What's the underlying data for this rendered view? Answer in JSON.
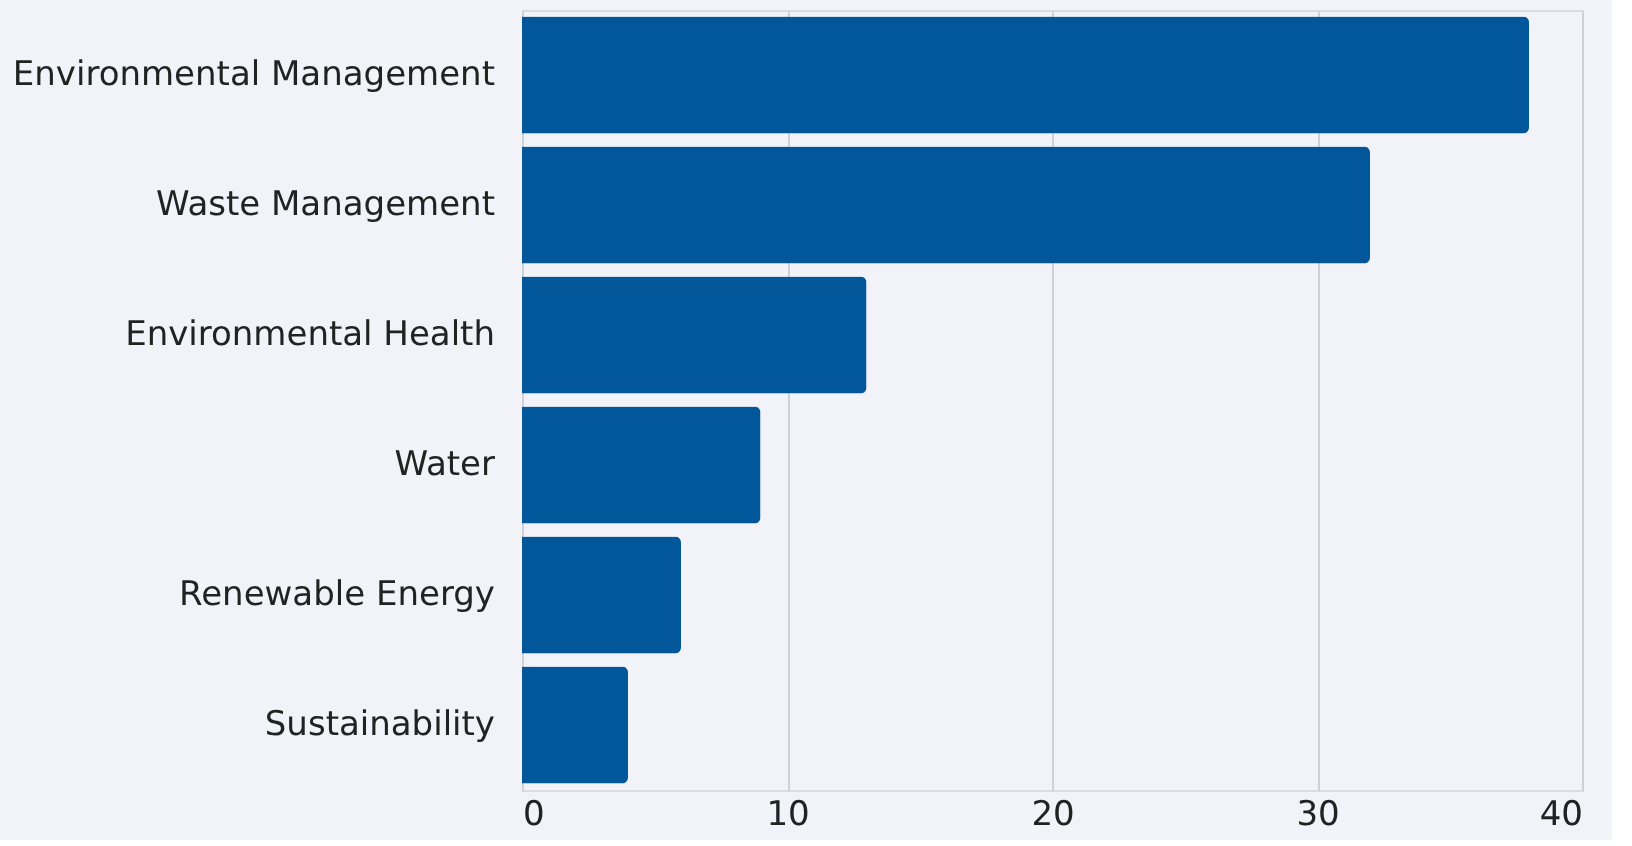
{
  "chart_data": {
    "type": "bar",
    "orientation": "horizontal",
    "categories": [
      "Environmental Management",
      "Waste Management",
      "Environmental Health",
      "Water",
      "Renewable Energy",
      "Sustainability"
    ],
    "values": [
      38,
      32,
      13,
      9,
      6,
      4
    ],
    "color": "#02579a",
    "xlim": [
      0,
      40
    ],
    "xticks": [
      0,
      10,
      20,
      30,
      40
    ],
    "grid": "x"
  }
}
